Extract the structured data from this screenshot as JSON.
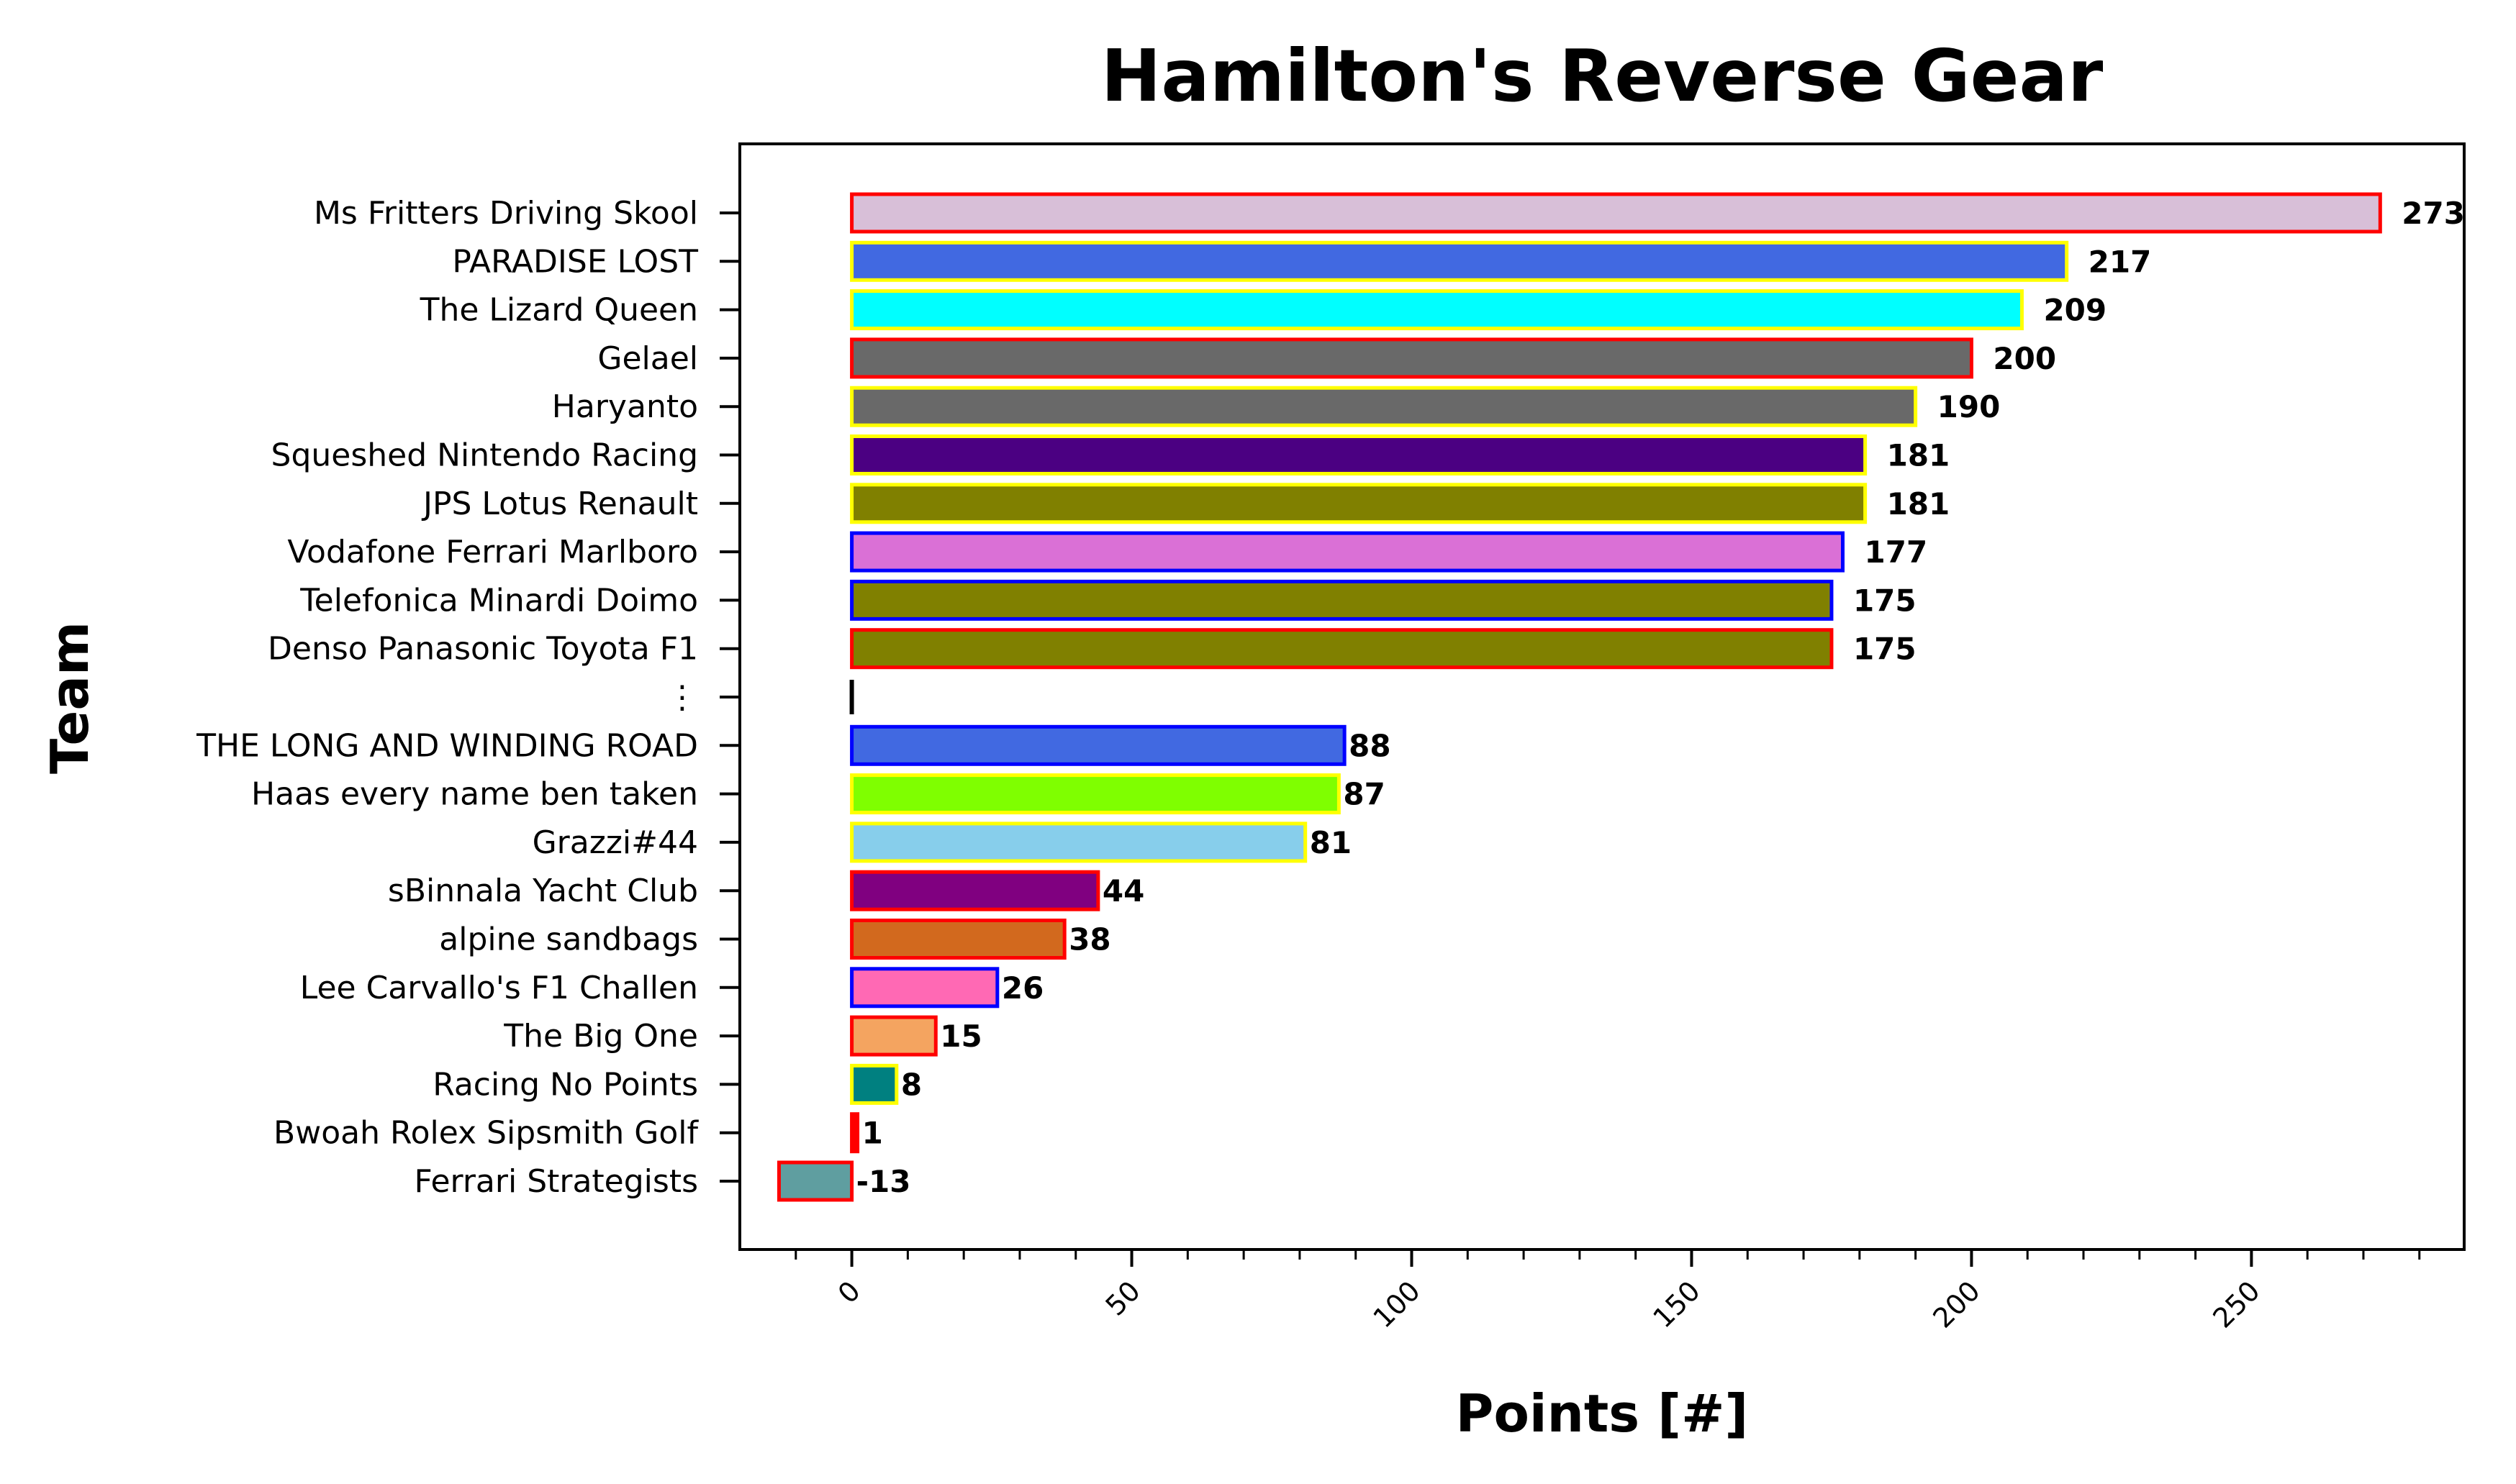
{
  "chart_data": {
    "type": "bar",
    "orientation": "horizontal",
    "title": "Hamilton's Reverse Gear",
    "xlabel": "Points [#]",
    "ylabel": "Team",
    "xlim": [
      -20,
      288
    ],
    "xticks": [
      "0",
      "50",
      "100",
      "150",
      "200",
      "250"
    ],
    "xtick_values": [
      0,
      50,
      100,
      150,
      200,
      250
    ],
    "grid": false,
    "legend": "none",
    "bars": [
      {
        "label": "Ms Fritters Driving Skool",
        "value": 273,
        "display": "273",
        "fill": "#d8bfd8",
        "edge": "#ff0000"
      },
      {
        "label": "PARADISE LOST",
        "value": 217,
        "display": "217",
        "fill": "#4169e1",
        "edge": "#ffff00"
      },
      {
        "label": "The Lizard Queen",
        "value": 209,
        "display": "209",
        "fill": "#00ffff",
        "edge": "#ffff00"
      },
      {
        "label": "Gelael",
        "value": 200,
        "display": "200",
        "fill": "#696969",
        "edge": "#ff0000"
      },
      {
        "label": "Haryanto",
        "value": 190,
        "display": "190",
        "fill": "#696969",
        "edge": "#ffff00"
      },
      {
        "label": "Squeshed Nintendo Racing",
        "value": 181,
        "display": "181",
        "fill": "#4b0082",
        "edge": "#ffff00"
      },
      {
        "label": "JPS Lotus Renault",
        "value": 181,
        "display": "181",
        "fill": "#808000",
        "edge": "#ffff00"
      },
      {
        "label": "Vodafone Ferrari Marlboro",
        "value": 177,
        "display": "177",
        "fill": "#da70d6",
        "edge": "#0000ff"
      },
      {
        "label": "Telefonica Minardi Doimo",
        "value": 175,
        "display": "175",
        "fill": "#808000",
        "edge": "#0000ff"
      },
      {
        "label": "Denso Panasonic Toyota F1",
        "value": 175,
        "display": "175",
        "fill": "#808000",
        "edge": "#ff0000"
      },
      {
        "label": "⋮",
        "value": 0,
        "display": "",
        "fill": "#000000",
        "edge": "#000000"
      },
      {
        "label": "THE LONG AND WINDING ROAD",
        "value": 88,
        "display": "88",
        "fill": "#4169e1",
        "edge": "#0000ff"
      },
      {
        "label": "Haas every name ben taken",
        "value": 87,
        "display": "87",
        "fill": "#7fff00",
        "edge": "#ffff00"
      },
      {
        "label": "Grazzi#44",
        "value": 81,
        "display": "81",
        "fill": "#87ceeb",
        "edge": "#ffff00"
      },
      {
        "label": "sBinnala Yacht Club",
        "value": 44,
        "display": "44",
        "fill": "#800080",
        "edge": "#ff0000"
      },
      {
        "label": "alpine sandbags",
        "value": 38,
        "display": "38",
        "fill": "#d2691e",
        "edge": "#ff0000"
      },
      {
        "label": "Lee Carvallo's F1 Challen",
        "value": 26,
        "display": "26",
        "fill": "#ff69b4",
        "edge": "#0000ff"
      },
      {
        "label": "The Big One",
        "value": 15,
        "display": "15",
        "fill": "#f4a460",
        "edge": "#ff0000"
      },
      {
        "label": "Racing No Points",
        "value": 8,
        "display": "8",
        "fill": "#008080",
        "edge": "#ffff00"
      },
      {
        "label": "Bwoah Rolex Sipsmith Golf",
        "value": 1,
        "display": "1",
        "fill": "#ff0000",
        "edge": "#ff0000"
      },
      {
        "label": "Ferrari Strategists",
        "value": -13,
        "display": "-13",
        "fill": "#5f9ea0",
        "edge": "#ff0000"
      }
    ]
  }
}
